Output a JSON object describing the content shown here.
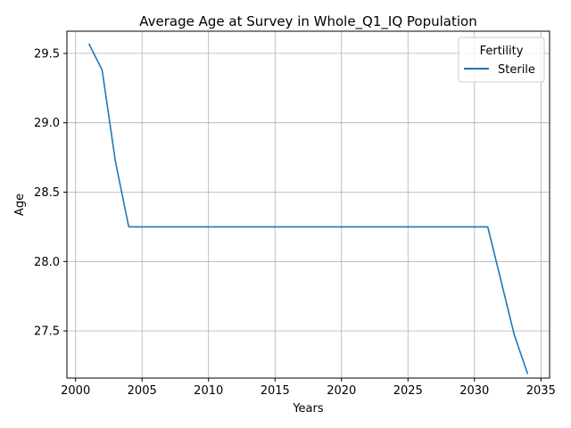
{
  "chart_data": {
    "type": "line",
    "title": "Average Age at Survey in Whole_Q1_IQ Population",
    "xlabel": "Years",
    "ylabel": "Age",
    "xlim": [
      1999.35,
      2035.65
    ],
    "ylim": [
      27.16,
      29.66
    ],
    "xticks": [
      2000,
      2005,
      2010,
      2015,
      2020,
      2025,
      2030,
      2035
    ],
    "yticks": [
      27.5,
      28.0,
      28.5,
      29.0,
      29.5
    ],
    "xtick_labels": [
      "2000",
      "2005",
      "2010",
      "2015",
      "2020",
      "2025",
      "2030",
      "2035"
    ],
    "ytick_labels": [
      "27.5",
      "28.0",
      "28.5",
      "29.0",
      "29.5"
    ],
    "grid": true,
    "legend": {
      "title": "Fertility",
      "placement": "top-right"
    },
    "series": [
      {
        "name": "Sterile",
        "color": "#1f77b4",
        "x": [
          2001,
          2002,
          2003,
          2004,
          2005,
          2006,
          2007,
          2008,
          2009,
          2010,
          2011,
          2012,
          2013,
          2014,
          2015,
          2016,
          2017,
          2018,
          2019,
          2020,
          2021,
          2022,
          2023,
          2024,
          2025,
          2026,
          2027,
          2028,
          2029,
          2030,
          2031,
          2032,
          2033,
          2034
        ],
        "y": [
          29.57,
          29.38,
          28.72,
          28.25,
          28.25,
          28.25,
          28.25,
          28.25,
          28.25,
          28.25,
          28.25,
          28.25,
          28.25,
          28.25,
          28.25,
          28.25,
          28.25,
          28.25,
          28.25,
          28.25,
          28.25,
          28.25,
          28.25,
          28.25,
          28.25,
          28.25,
          28.25,
          28.25,
          28.25,
          28.25,
          28.25,
          27.86,
          27.47,
          27.19
        ]
      }
    ]
  }
}
